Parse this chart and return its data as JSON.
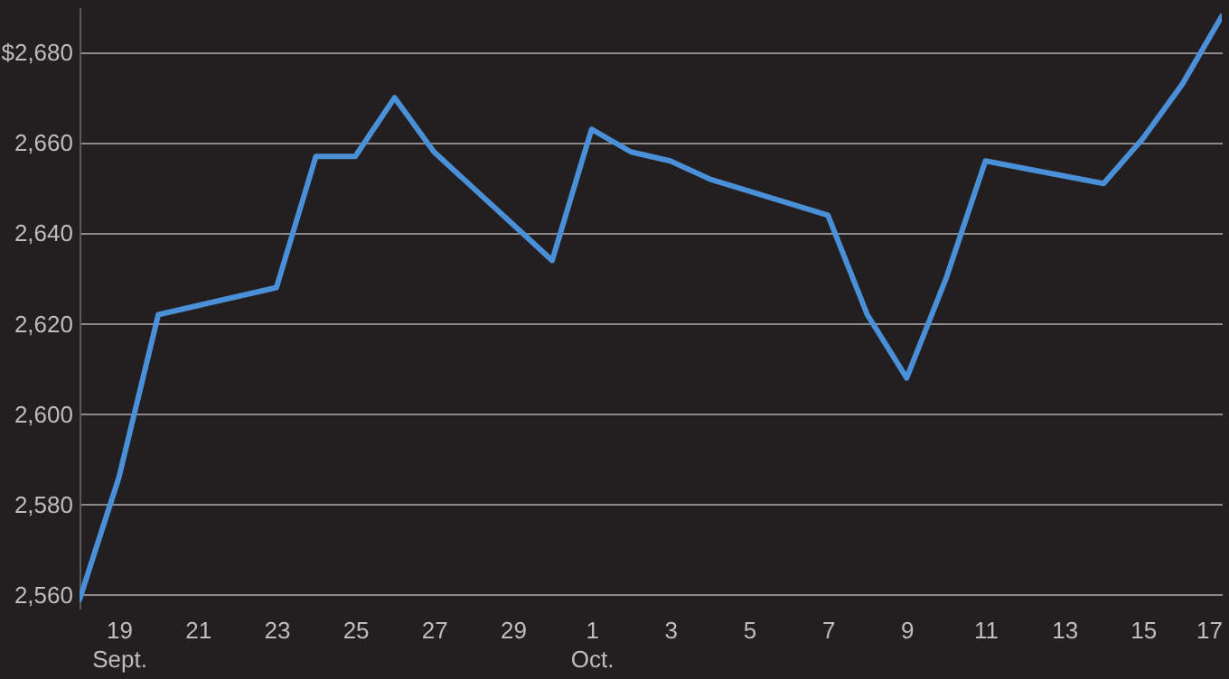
{
  "chart_data": {
    "type": "line",
    "x": [
      "--09-18",
      "--09-19",
      "--09-20",
      "--09-23",
      "--09-24",
      "--09-25",
      "--09-26",
      "--09-27",
      "--09-30",
      "--10-01",
      "--10-02",
      "--10-03",
      "--10-04",
      "--10-07",
      "--10-08",
      "--10-09",
      "--10-10",
      "--10-11",
      "--10-14",
      "--10-15",
      "--10-16",
      "--10-17"
    ],
    "series": [
      {
        "color": "#4a90d9",
        "values": [
          2559,
          2586,
          2622,
          2628,
          2657,
          2657,
          2670,
          2658,
          2634,
          2663,
          2658,
          2656,
          2652,
          2644,
          2622,
          2608,
          2630,
          2656,
          2651,
          2661,
          2673,
          2688
        ]
      }
    ],
    "xlim": [
      "--09-18",
      "--10-17"
    ],
    "xticks": [
      {
        "value": "--09-19",
        "label": "19\nSept."
      },
      {
        "value": "--09-21",
        "label": "21"
      },
      {
        "value": "--09-23",
        "label": "23"
      },
      {
        "value": "--09-25",
        "label": "25"
      },
      {
        "value": "--09-27",
        "label": "27"
      },
      {
        "value": "--09-29",
        "label": "29"
      },
      {
        "value": "--10-01",
        "label": "1\nOct."
      },
      {
        "value": "--10-03",
        "label": "3"
      },
      {
        "value": "--10-05",
        "label": "5"
      },
      {
        "value": "--10-07",
        "label": "7"
      },
      {
        "value": "--10-09",
        "label": "9"
      },
      {
        "value": "--10-11",
        "label": "11"
      },
      {
        "value": "--10-13",
        "label": "13"
      },
      {
        "value": "--10-15",
        "label": "15"
      },
      {
        "value": "--10-17",
        "label": "17"
      }
    ],
    "ylim": [
      2557,
      2690
    ],
    "yticks": [
      {
        "value": 2560,
        "label": "2,560"
      },
      {
        "value": 2580,
        "label": "2,580"
      },
      {
        "value": 2600,
        "label": "2,600"
      },
      {
        "value": 2620,
        "label": "2,620"
      },
      {
        "value": 2640,
        "label": "2,640"
      },
      {
        "value": 2660,
        "label": "2,660"
      },
      {
        "value": 2680,
        "label": "$2,680"
      }
    ],
    "grid": "y",
    "line_style": "solid"
  }
}
